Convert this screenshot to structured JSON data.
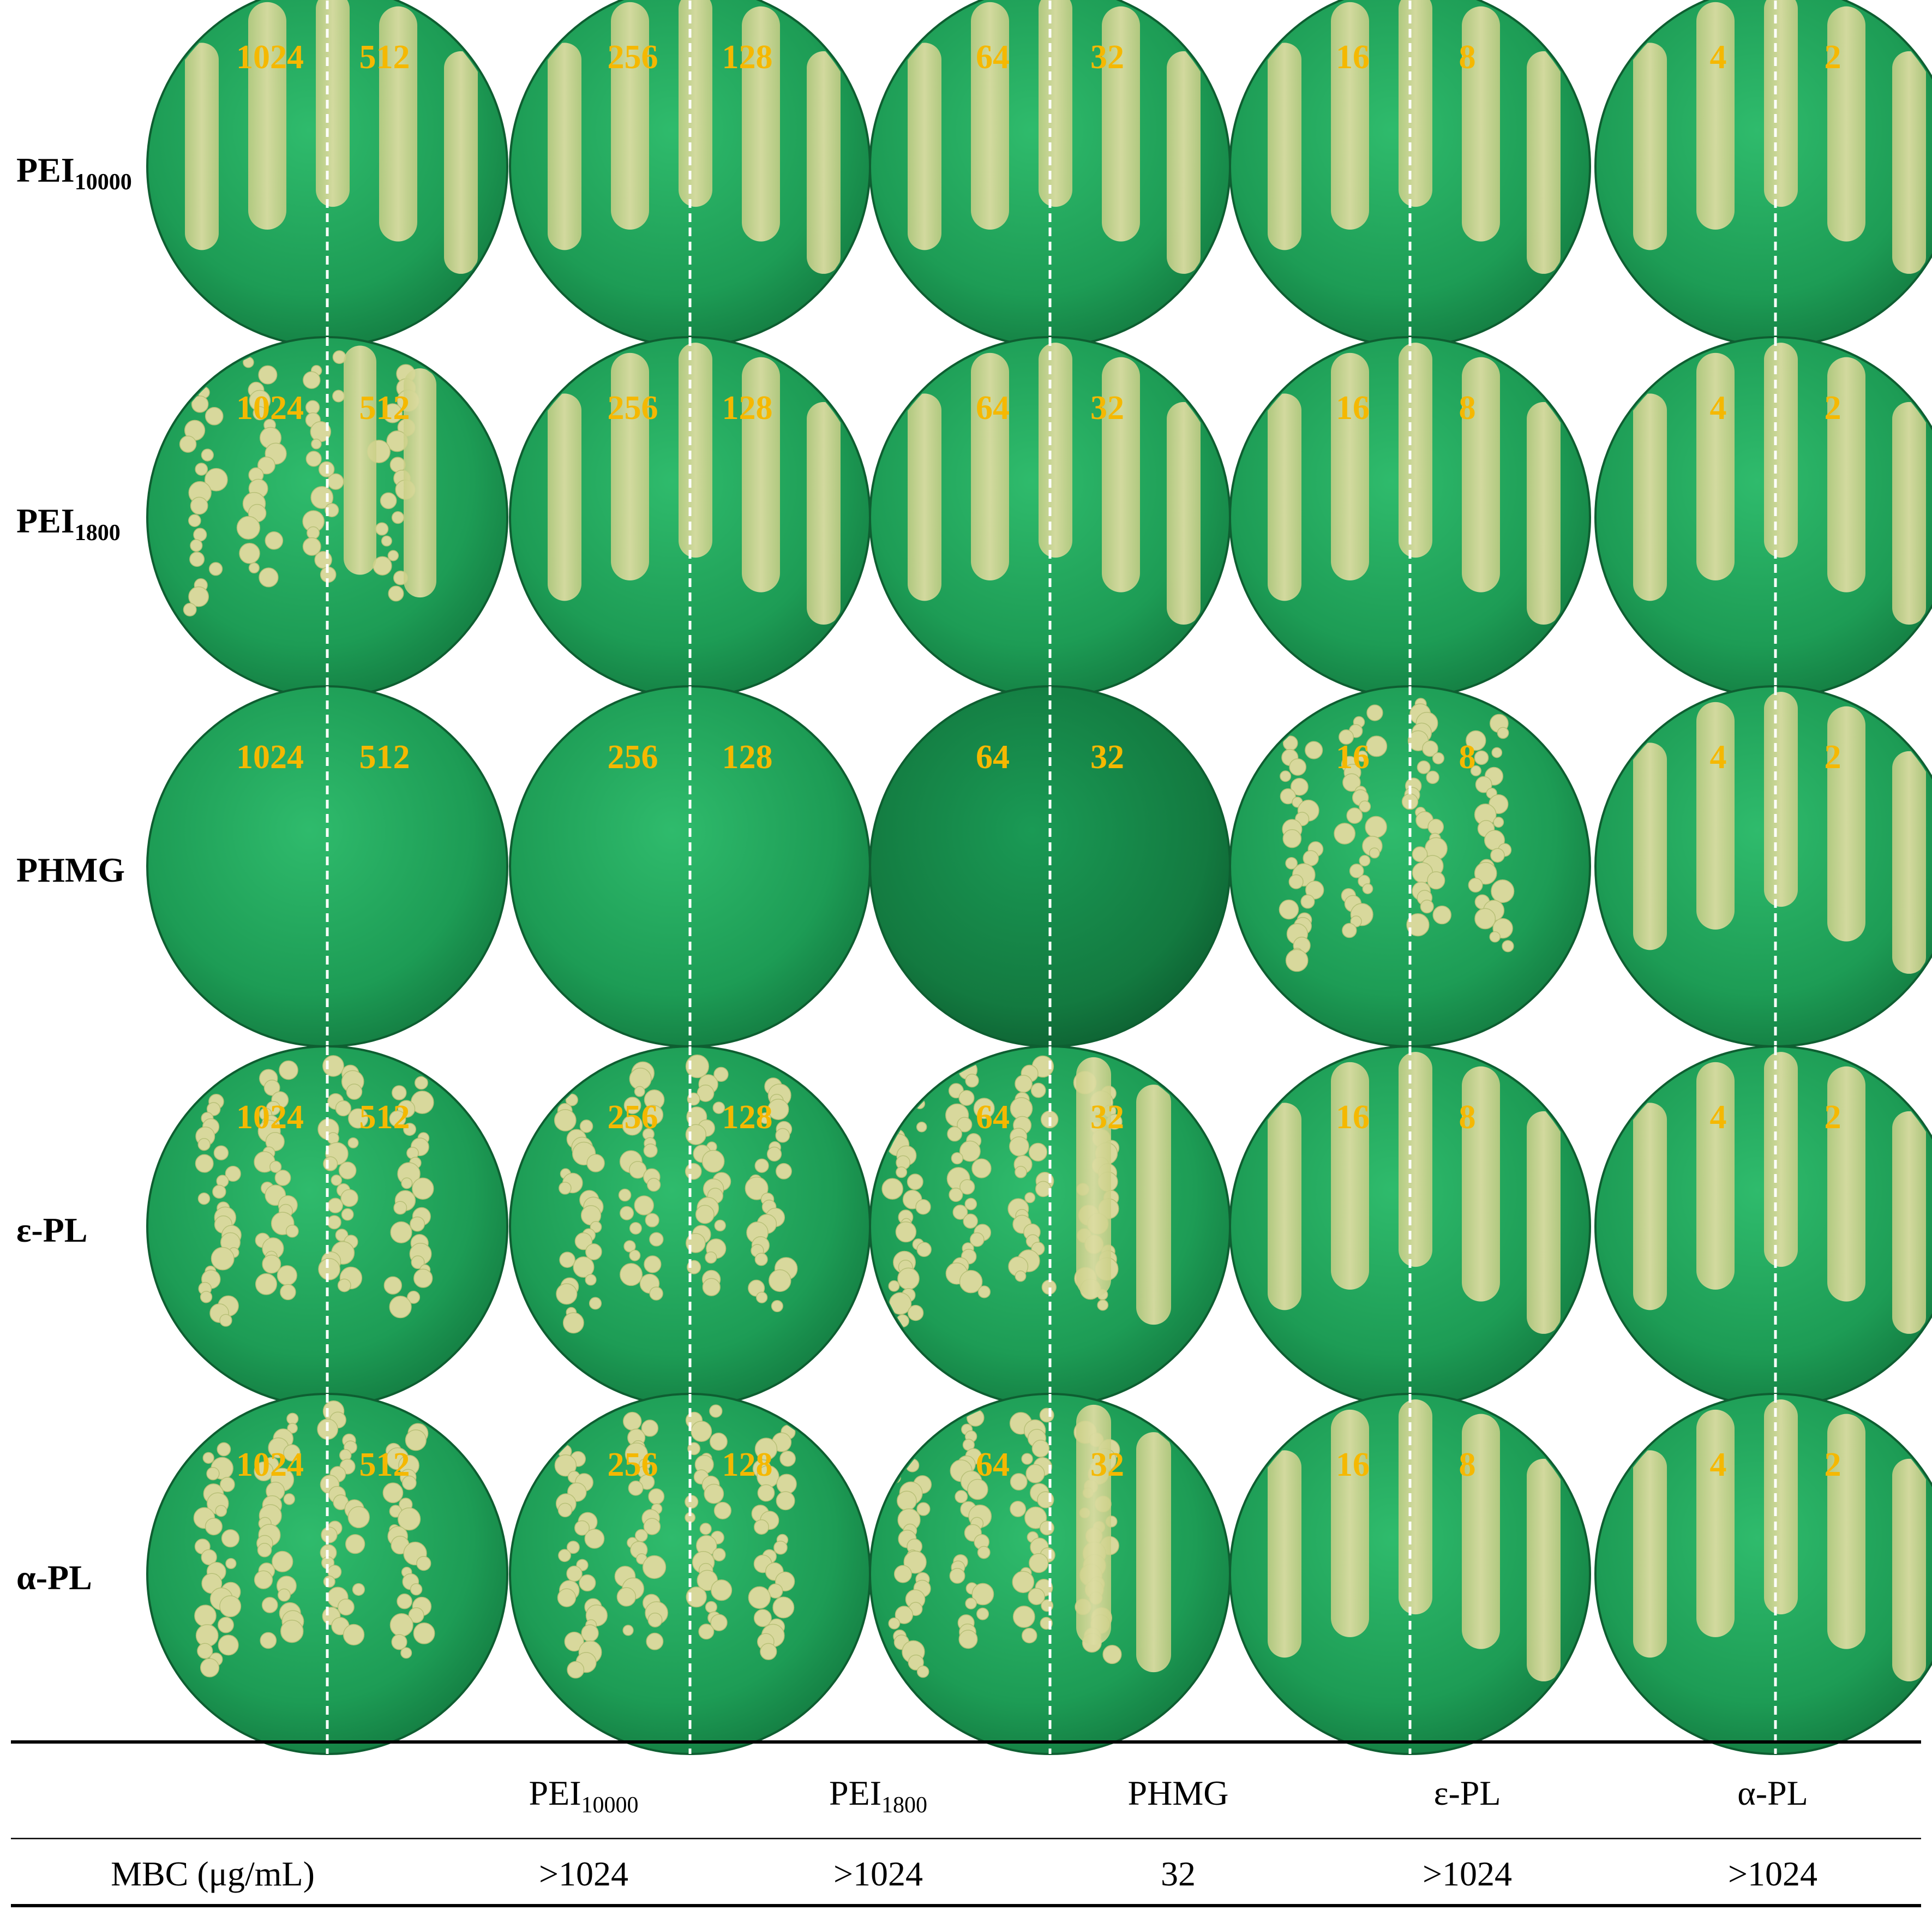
{
  "colors": {
    "agar_light": "#2fbb6c",
    "agar_mid": "#1d9c55",
    "agar_dark": "#137a40",
    "growth": "#d8d89c",
    "growth_edge": "#b8c078",
    "label": "#f5b800",
    "divider": "#ffffff"
  },
  "rows": [
    {
      "label_main": "PEI",
      "label_sub": "10000",
      "plates": [
        {
          "conc": [
            "1024",
            "512"
          ],
          "growth": "streak"
        },
        {
          "conc": [
            "256",
            "128"
          ],
          "growth": "streak"
        },
        {
          "conc": [
            "64",
            "32"
          ],
          "growth": "streak"
        },
        {
          "conc": [
            "16",
            "8"
          ],
          "growth": "streak"
        },
        {
          "conc": [
            "4",
            "2"
          ],
          "growth": "streak"
        }
      ]
    },
    {
      "label_main": "PEI",
      "label_sub": "1800",
      "plates": [
        {
          "conc": [
            "1024",
            "512"
          ],
          "growth": "colonies-left"
        },
        {
          "conc": [
            "256",
            "128"
          ],
          "growth": "streak"
        },
        {
          "conc": [
            "64",
            "32"
          ],
          "growth": "streak"
        },
        {
          "conc": [
            "16",
            "8"
          ],
          "growth": "streak"
        },
        {
          "conc": [
            "4",
            "2"
          ],
          "growth": "streak"
        }
      ]
    },
    {
      "label_main": "PHMG",
      "label_sub": "",
      "plates": [
        {
          "conc": [
            "1024",
            "512"
          ],
          "growth": "none"
        },
        {
          "conc": [
            "256",
            "128"
          ],
          "growth": "none"
        },
        {
          "conc": [
            "64",
            "32"
          ],
          "growth": "none"
        },
        {
          "conc": [
            "16",
            "8"
          ],
          "growth": "colonies"
        },
        {
          "conc": [
            "4",
            "2"
          ],
          "growth": "streak"
        }
      ]
    },
    {
      "label_main": "ε-PL",
      "label_sub": "",
      "plates": [
        {
          "conc": [
            "1024",
            "512"
          ],
          "growth": "colonies"
        },
        {
          "conc": [
            "256",
            "128"
          ],
          "growth": "colonies"
        },
        {
          "conc": [
            "64",
            "32"
          ],
          "growth": "colonies-streak"
        },
        {
          "conc": [
            "16",
            "8"
          ],
          "growth": "streak"
        },
        {
          "conc": [
            "4",
            "2"
          ],
          "growth": "streak"
        }
      ]
    },
    {
      "label_main": "α-PL",
      "label_sub": "",
      "plates": [
        {
          "conc": [
            "1024",
            "512"
          ],
          "growth": "colonies"
        },
        {
          "conc": [
            "256",
            "128"
          ],
          "growth": "colonies"
        },
        {
          "conc": [
            "64",
            "32"
          ],
          "growth": "colonies-streak"
        },
        {
          "conc": [
            "16",
            "8"
          ],
          "growth": "streak"
        },
        {
          "conc": [
            "4",
            "2"
          ],
          "growth": "streak"
        }
      ]
    }
  ],
  "table": {
    "headers": [
      {
        "main": "PEI",
        "sub": "10000"
      },
      {
        "main": "PEI",
        "sub": "1800"
      },
      {
        "main": "PHMG",
        "sub": ""
      },
      {
        "main": "ε-PL",
        "sub": ""
      },
      {
        "main": "α-PL",
        "sub": ""
      }
    ],
    "row_label": "MBC (μg/mL)",
    "values": [
      ">1024",
      ">1024",
      "32",
      ">1024",
      ">1024"
    ]
  }
}
